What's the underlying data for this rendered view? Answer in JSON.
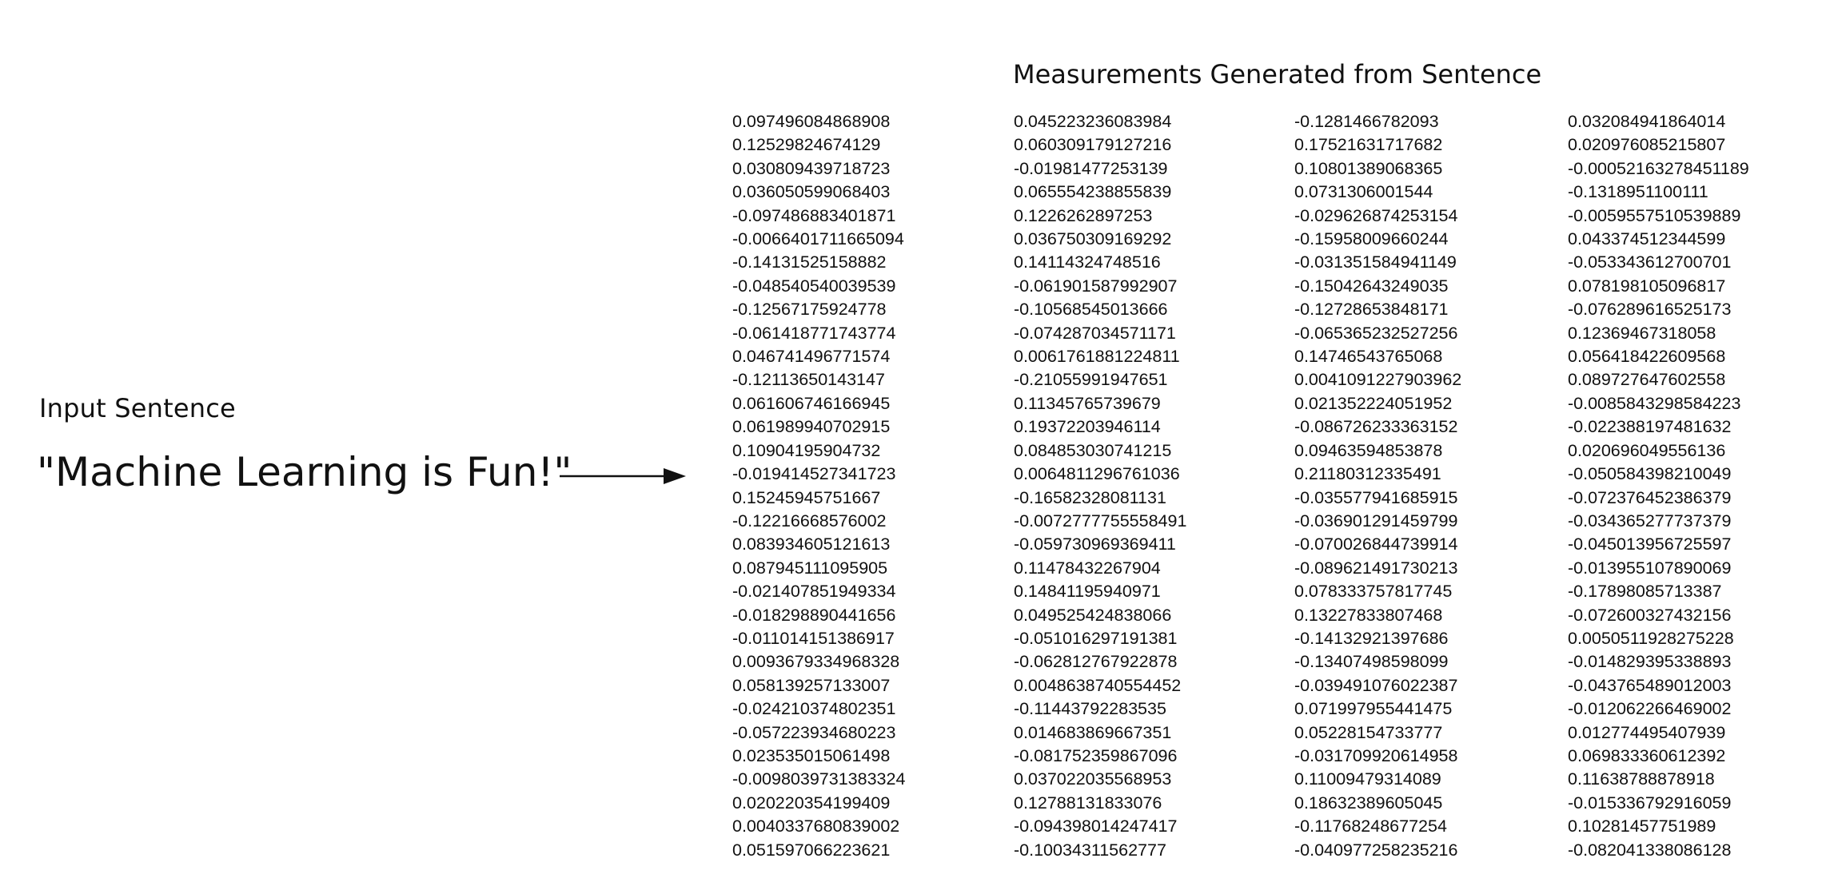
{
  "input": {
    "label": "Input Sentence",
    "sentence": "\"Machine Learning is Fun!\""
  },
  "output": {
    "title": "Measurements Generated from Sentence",
    "columns": [
      [
        "0.097496084868908",
        "0.12529824674129",
        "0.030809439718723",
        "0.036050599068403",
        "-0.097486883401871",
        "-0.0066401711665094",
        "-0.14131525158882",
        "-0.048540540039539",
        "-0.12567175924778",
        "-0.061418771743774",
        "0.046741496771574",
        "-0.12113650143147",
        "0.061606746166945",
        "0.061989940702915",
        "0.10904195904732",
        "-0.019414527341723",
        "0.15245945751667",
        "-0.12216668576002",
        "0.083934605121613",
        "0.087945111095905",
        "-0.021407851949334",
        "-0.018298890441656",
        "-0.011014151386917",
        "0.0093679334968328",
        "0.058139257133007",
        "-0.024210374802351",
        "-0.057223934680223",
        "0.023535015061498",
        "-0.0098039731383324",
        "0.020220354199409",
        "0.0040337680839002",
        "0.051597066223621"
      ],
      [
        "0.045223236083984",
        "0.060309179127216",
        "-0.01981477253139",
        "0.065554238855839",
        "0.1226262897253",
        "0.036750309169292",
        "0.14114324748516",
        "-0.061901587992907",
        "-0.10568545013666",
        "-0.074287034571171",
        "0.0061761881224811",
        "-0.21055991947651",
        "0.11345765739679",
        "0.19372203946114",
        "0.084853030741215",
        "0.0064811296761036",
        "-0.16582328081131",
        "-0.0072777755558491",
        "-0.059730969369411",
        "0.11478432267904",
        "0.14841195940971",
        "0.049525424838066",
        "-0.051016297191381",
        "-0.062812767922878",
        "0.0048638740554452",
        "-0.11443792283535",
        "0.014683869667351",
        "-0.081752359867096",
        "0.037022035568953",
        "0.12788131833076",
        "-0.094398014247417",
        "-0.10034311562777"
      ],
      [
        "-0.1281466782093",
        "0.17521631717682",
        "0.10801389068365",
        "0.0731306001544",
        "-0.029626874253154",
        "-0.15958009660244",
        "-0.031351584941149",
        "-0.15042643249035",
        "-0.12728653848171",
        "-0.065365232527256",
        "0.14746543765068",
        "0.0041091227903962",
        "0.021352224051952",
        "-0.086726233363152",
        "0.09463594853878",
        "0.21180312335491",
        "-0.035577941685915",
        "-0.036901291459799",
        "-0.070026844739914",
        "-0.089621491730213",
        "0.078333757817745",
        "0.13227833807468",
        "-0.14132921397686",
        "-0.13407498598099",
        "-0.039491076022387",
        "0.071997955441475",
        "0.05228154733777",
        "-0.031709920614958",
        "0.11009479314089",
        "0.18632389605045",
        "-0.11768248677254",
        "-0.040977258235216"
      ],
      [
        "0.032084941864014",
        "0.020976085215807",
        "-0.00052163278451189",
        "-0.1318951100111",
        "-0.0059557510539889",
        "0.043374512344599",
        "-0.053343612700701",
        "0.078198105096817",
        "-0.076289616525173",
        "0.12369467318058",
        "0.056418422609568",
        "0.089727647602558",
        "-0.0085843298584223",
        "-0.022388197481632",
        "0.020696049556136",
        "-0.050584398210049",
        "-0.072376452386379",
        "-0.034365277737379",
        "-0.045013956725597",
        "-0.013955107890069",
        "-0.17898085713387",
        "-0.072600327432156",
        "0.0050511928275228",
        "-0.014829395338893",
        "-0.043765489012003",
        "-0.012062266469002",
        "0.012774495407939",
        "0.069833360612392",
        "0.11638788878918",
        "-0.015336792916059",
        "0.10281457751989",
        "-0.082041338086128"
      ]
    ]
  },
  "icons": {
    "arrow": "right-arrow-icon"
  }
}
